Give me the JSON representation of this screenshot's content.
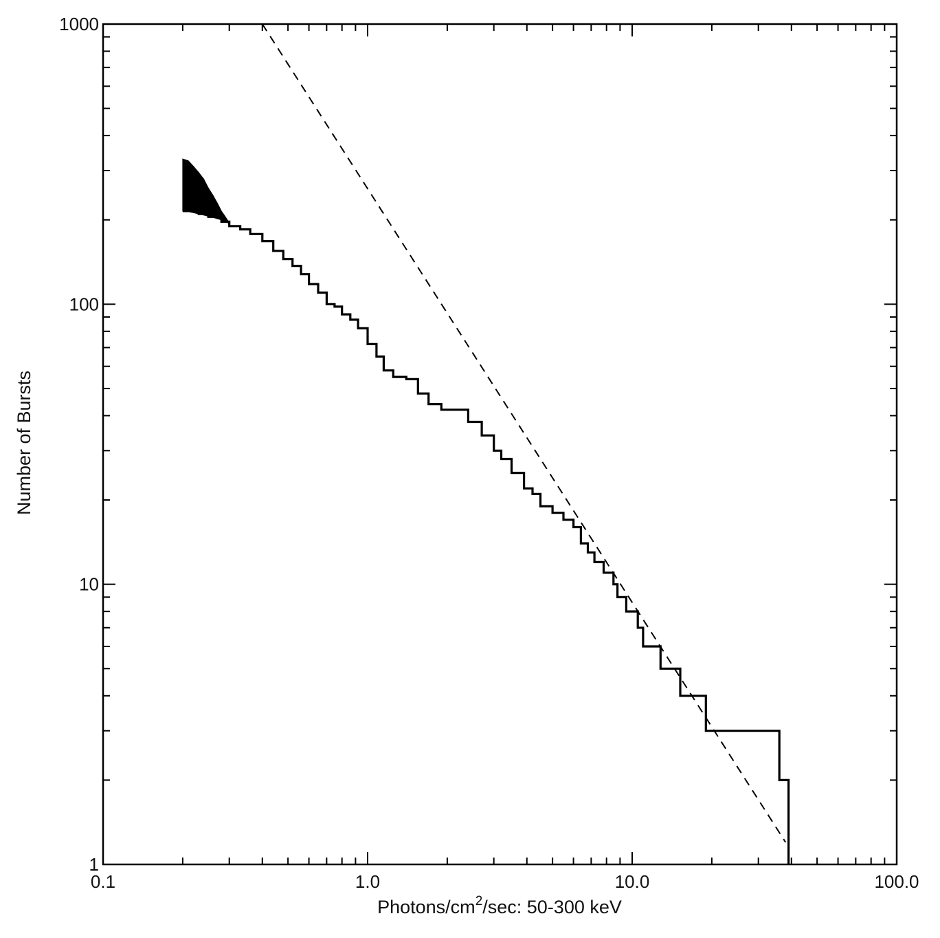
{
  "chart_data": {
    "type": "line",
    "title": "",
    "xlabel_parts": [
      "Photons/cm",
      "2",
      "/sec: 50-300 keV"
    ],
    "ylabel": "Number of Bursts",
    "x_scale": "log",
    "y_scale": "log",
    "xlim": [
      0.1,
      100.0
    ],
    "ylim": [
      1,
      1000
    ],
    "x_tick_labels": [
      {
        "value": 0.1,
        "label": "0.1"
      },
      {
        "value": 1.0,
        "label": "1.0"
      },
      {
        "value": 10.0,
        "label": "10.0"
      },
      {
        "value": 100.0,
        "label": "100.0"
      }
    ],
    "y_tick_labels": [
      {
        "value": 1,
        "label": "1"
      },
      {
        "value": 10,
        "label": "10"
      },
      {
        "value": 100,
        "label": "100"
      },
      {
        "value": 1000,
        "label": "1000"
      }
    ],
    "grid": false,
    "series": [
      {
        "style": "solid-step",
        "color": "#000000",
        "x": [
          0.2,
          0.23,
          0.25,
          0.28,
          0.3,
          0.33,
          0.36,
          0.4,
          0.44,
          0.48,
          0.52,
          0.56,
          0.6,
          0.65,
          0.7,
          0.75,
          0.8,
          0.86,
          0.92,
          1.0,
          1.08,
          1.15,
          1.25,
          1.4,
          1.55,
          1.7,
          1.9,
          2.1,
          2.4,
          2.7,
          3.0,
          3.2,
          3.5,
          3.9,
          4.2,
          4.5,
          5.0,
          5.5,
          6.0,
          6.4,
          6.8,
          7.2,
          7.8,
          8.5,
          8.8,
          9.5,
          10.5,
          11.0,
          12.8,
          15.2,
          19.0,
          24.0,
          32.0,
          36.0,
          39.0
        ],
        "y": [
          215,
          210,
          205,
          197,
          190,
          185,
          178,
          168,
          155,
          145,
          137,
          128,
          118,
          110,
          100,
          98,
          92,
          88,
          82,
          72,
          65,
          58,
          55,
          54,
          48,
          44,
          42,
          42,
          38,
          34,
          30,
          28,
          25,
          22,
          21,
          19,
          18,
          17,
          16,
          14,
          13,
          12,
          11,
          10,
          9,
          8,
          7,
          6,
          5,
          4,
          3,
          3,
          3,
          2,
          1
        ]
      },
      {
        "style": "dashed",
        "color": "#000000",
        "x": [
          0.4,
          38.0
        ],
        "y": [
          1000,
          1.2
        ]
      }
    ],
    "shaded_band": {
      "color": "#000000",
      "x": [
        0.2,
        0.21,
        0.22,
        0.23,
        0.24,
        0.25,
        0.26,
        0.27,
        0.28,
        0.29,
        0.3
      ],
      "y_upper": [
        330,
        325,
        310,
        295,
        280,
        260,
        245,
        230,
        215,
        205,
        195
      ],
      "y_lower": [
        215,
        214,
        212,
        210,
        208,
        206,
        204,
        202,
        200,
        197,
        194
      ]
    }
  }
}
